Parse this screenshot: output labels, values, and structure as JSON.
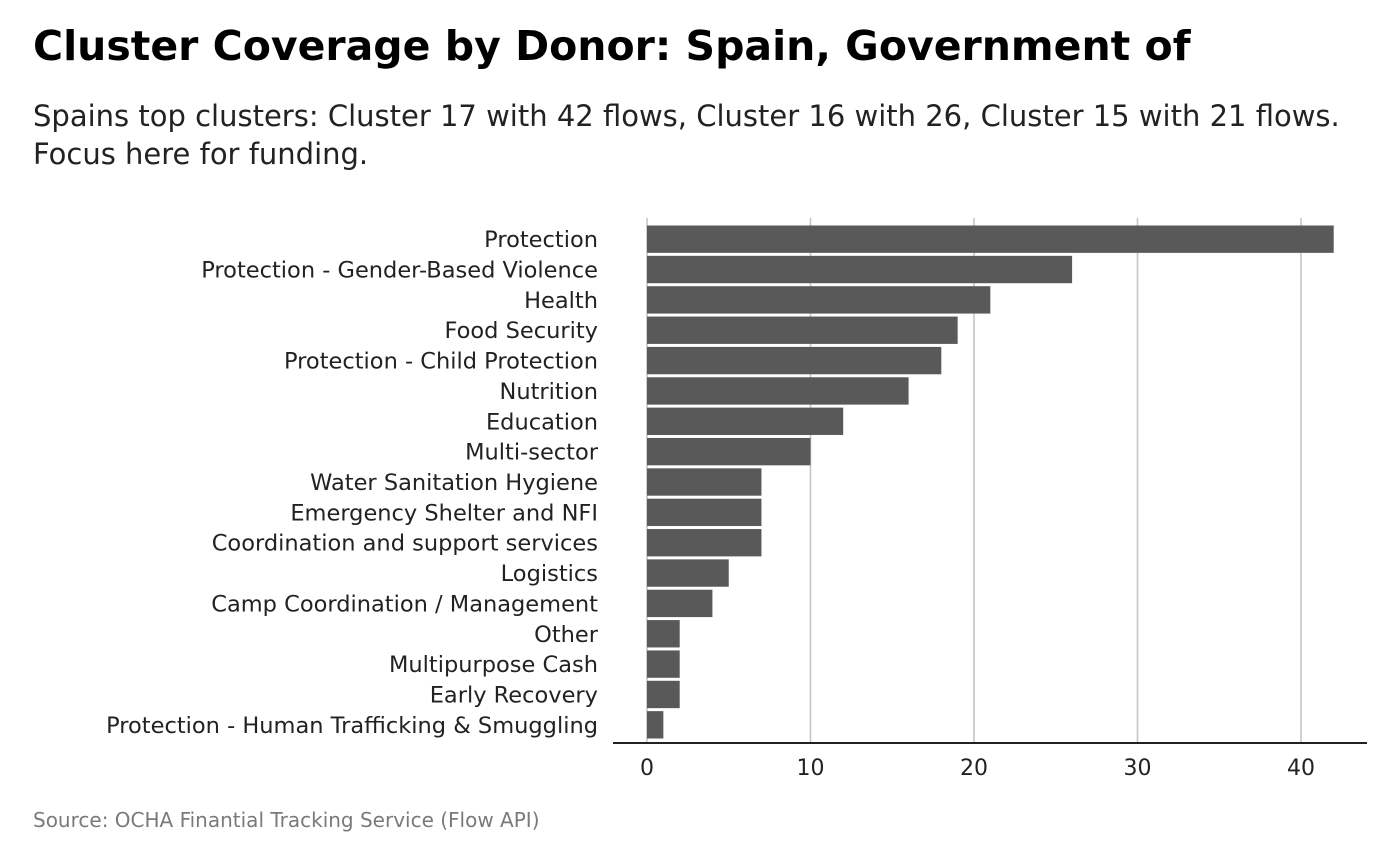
{
  "chart_data": {
    "type": "bar",
    "orientation": "horizontal",
    "title": "Cluster Coverage by Donor: Spain, Government of",
    "subtitle": "Spains top clusters: Cluster 17 with 42 flows, Cluster 16 with 26, Cluster 15 with 21 flows. Focus here for funding.",
    "caption": "Source: OCHA Finantial Tracking Service (Flow API)",
    "xlabel": "",
    "ylabel": "",
    "xlim": [
      0,
      43
    ],
    "x_ticks": [
      0,
      10,
      20,
      30,
      40
    ],
    "grid": "vertical major",
    "bar_color": "#595959",
    "categories": [
      "Protection",
      "Protection - Gender-Based Violence",
      "Health",
      "Food Security",
      "Protection - Child Protection",
      "Nutrition",
      "Education",
      "Multi-sector",
      "Water Sanitation Hygiene",
      "Emergency Shelter and NFI",
      "Coordination and support services",
      "Logistics",
      "Camp Coordination / Management",
      "Other",
      "Multipurpose Cash",
      "Early Recovery",
      "Protection - Human Trafficking & Smuggling"
    ],
    "values": [
      42,
      26,
      21,
      19,
      18,
      16,
      12,
      10,
      7,
      7,
      7,
      5,
      4,
      2,
      2,
      2,
      1
    ]
  }
}
